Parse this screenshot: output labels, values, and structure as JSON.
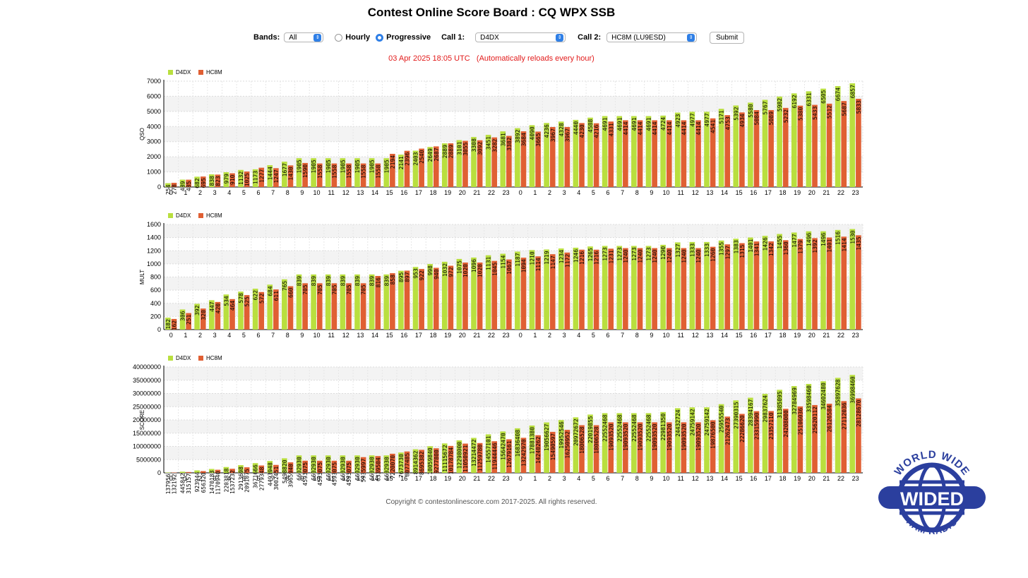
{
  "page": {
    "title": "Contest Online Score Board : CQ WPX SSB",
    "status": "03 Apr 2025 18:05 UTC   (Automatically reloads every hour)",
    "footer": "Copyright © contestonlinescore.com 2017-2025. All rights reserved."
  },
  "controls": {
    "bands_label": "Bands:",
    "bands_value": "All",
    "hourly_label": "Hourly",
    "progressive_label": "Progressive",
    "mode_selected": "Progressive",
    "call1_label": "Call 1:",
    "call1_value": "D4DX",
    "call2_label": "Call 2:",
    "call2_value": "HC8M (LU9ESD)",
    "submit_label": "Submit"
  },
  "logo": {
    "text_top": "WORLD WIDE",
    "text_center": "WIDED",
    "text_bottom": "HAM RADIO"
  },
  "colors": {
    "series1": "#b9df3f",
    "series2": "#e05f33",
    "accent": "#2f7fe6",
    "status": "#e21b1b"
  },
  "chart_data": [
    {
      "type": "bar",
      "ylabel": "QSO",
      "ylim": [
        0,
        7000
      ],
      "yticks": [
        0,
        1000,
        2000,
        3000,
        4000,
        5000,
        6000,
        7000
      ],
      "legend": "top-left",
      "grid": true,
      "categories": [
        "0",
        "1",
        "2",
        "3",
        "4",
        "5",
        "6",
        "7",
        "8",
        "9",
        "10",
        "11",
        "12",
        "13",
        "14",
        "15",
        "16",
        "17",
        "18",
        "19",
        "20",
        "21",
        "22",
        "23",
        "0",
        "1",
        "2",
        "3",
        "4",
        "5",
        "6",
        "7",
        "8",
        "9",
        "10",
        "11",
        "12",
        "13",
        "14",
        "15",
        "16",
        "17",
        "18",
        "19",
        "20",
        "21",
        "22",
        "23"
      ],
      "series": [
        {
          "name": "D4DX",
          "values": [
            254,
            489,
            682,
            838,
            979,
            1132,
            1173,
            1444,
            1677,
            1905,
            1905,
            1905,
            1905,
            1905,
            1905,
            1905,
            2141,
            2403,
            2649,
            2889,
            3101,
            3308,
            3451,
            3681,
            3892,
            4090,
            4236,
            4328,
            4440,
            4588,
            4691,
            4691,
            4691,
            4691,
            4724,
            4923,
            4977,
            4977,
            5171,
            5392,
            5580,
            5767,
            5982,
            6192,
            6331,
            6505,
            6674,
            6857
          ]
        },
        {
          "name": "HC8M",
          "values": [
            278,
            485,
            695,
            823,
            910,
            1025,
            1277,
            1247,
            1430,
            1590,
            1558,
            1558,
            1558,
            1558,
            1558,
            2194,
            2396,
            2540,
            2687,
            2889,
            3055,
            3092,
            3282,
            3382,
            3684,
            3665,
            3967,
            3967,
            4230,
            4216,
            4331,
            4414,
            4414,
            4414,
            4414,
            4414,
            4414,
            4541,
            4753,
            4934,
            5084,
            5089,
            5232,
            5380,
            5433,
            5512,
            5687,
            5833
          ]
        }
      ]
    },
    {
      "type": "bar",
      "ylabel": "MULT",
      "ylim": [
        0,
        1600
      ],
      "yticks": [
        0,
        200,
        400,
        600,
        800,
        1000,
        1200,
        1400,
        1600
      ],
      "legend": "top-left",
      "grid": true,
      "categories": [
        "0",
        "1",
        "2",
        "3",
        "4",
        "5",
        "6",
        "7",
        "8",
        "9",
        "10",
        "11",
        "12",
        "13",
        "14",
        "15",
        "16",
        "17",
        "18",
        "19",
        "20",
        "21",
        "22",
        "23",
        "0",
        "1",
        "2",
        "3",
        "4",
        "5",
        "6",
        "7",
        "8",
        "9",
        "10",
        "11",
        "12",
        "13",
        "14",
        "15",
        "16",
        "17",
        "18",
        "19",
        "20",
        "21",
        "22",
        "23"
      ],
      "series": [
        {
          "name": "D4DX",
          "values": [
            182,
            306,
            392,
            447,
            534,
            578,
            622,
            684,
            765,
            839,
            839,
            839,
            839,
            839,
            839,
            839,
            895,
            953,
            998,
            1032,
            1075,
            1096,
            1131,
            1154,
            1187,
            1210,
            1219,
            1234,
            1246,
            1265,
            1273,
            1273,
            1273,
            1273,
            1290,
            1327,
            1333,
            1333,
            1355,
            1383,
            1401,
            1426,
            1455,
            1477,
            1496,
            1496,
            1516,
            1530
          ]
        },
        {
          "name": "HC8M",
          "values": [
            162,
            251,
            320,
            420,
            464,
            525,
            572,
            611,
            660,
            705,
            705,
            705,
            705,
            705,
            816,
            858,
            897,
            922,
            940,
            972,
            1020,
            1020,
            1045,
            1067,
            1094,
            1114,
            1147,
            1172,
            1216,
            1216,
            1231,
            1240,
            1240,
            1240,
            1240,
            1240,
            1240,
            1260,
            1297,
            1315,
            1341,
            1342,
            1360,
            1379,
            1392,
            1401,
            1414,
            1435
          ]
        }
      ]
    },
    {
      "type": "bar",
      "ylabel": "SCORE",
      "ylim": [
        0,
        40000000
      ],
      "yticks": [
        0,
        5000000,
        10000000,
        15000000,
        20000000,
        25000000,
        30000000,
        35000000,
        40000000
      ],
      "legend": "top-left",
      "grid": true,
      "categories": [
        "0",
        "1",
        "2",
        "3",
        "4",
        "5",
        "6",
        "7",
        "8",
        "9",
        "10",
        "11",
        "12",
        "13",
        "14",
        "15",
        "16",
        "17",
        "18",
        "19",
        "20",
        "21",
        "22",
        "23",
        "0",
        "1",
        "2",
        "3",
        "4",
        "5",
        "6",
        "7",
        "8",
        "9",
        "10",
        "11",
        "12",
        "13",
        "14",
        "15",
        "16",
        "17",
        "18",
        "19",
        "20",
        "21",
        "22",
        "23"
      ],
      "series": [
        {
          "name": "D4DX",
          "values": [
            137956,
            445842,
            923944,
            1470183,
            2203818,
            2913698,
            3671666,
            4493948,
            5498820,
            6602930,
            6602930,
            6602930,
            6602930,
            6602930,
            6602930,
            6602930,
            7673730,
            8914362,
            10059840,
            11115672,
            12298000,
            13214472,
            14557101,
            15642470,
            16836408,
            17881380,
            19056627,
            19952546,
            20972672,
            22019855,
            22552468,
            22552468,
            22552468,
            22552468,
            22981350,
            24432724,
            24759142,
            24759142,
            25955540,
            27390315,
            28394167,
            29837624,
            31385095,
            32784969,
            33598460,
            34602480,
            35897628,
            36998460
          ]
        },
        {
          "name": "HC8M",
          "values": [
            132192,
            315157,
            656320,
            1170940,
            1537232,
            2091075,
            2779348,
            3002451,
            3965940,
            4593075,
            4593075,
            4593075,
            4593075,
            5935997,
            6339504,
            7220070,
            8077485,
            8695382,
            9277800,
            10178784,
            11050921,
            11259780,
            11944446,
            12679161,
            13242970,
            14240262,
            15490597,
            16250952,
            18006528,
            18006528,
            19093520,
            19093520,
            19093520,
            19093520,
            19093520,
            19093520,
            19093520,
            19876500,
            21262473,
            22286620,
            23315990,
            23357110,
            24208000,
            25106036,
            25620112,
            26126584,
            27112036,
            28128670
          ]
        }
      ]
    }
  ]
}
